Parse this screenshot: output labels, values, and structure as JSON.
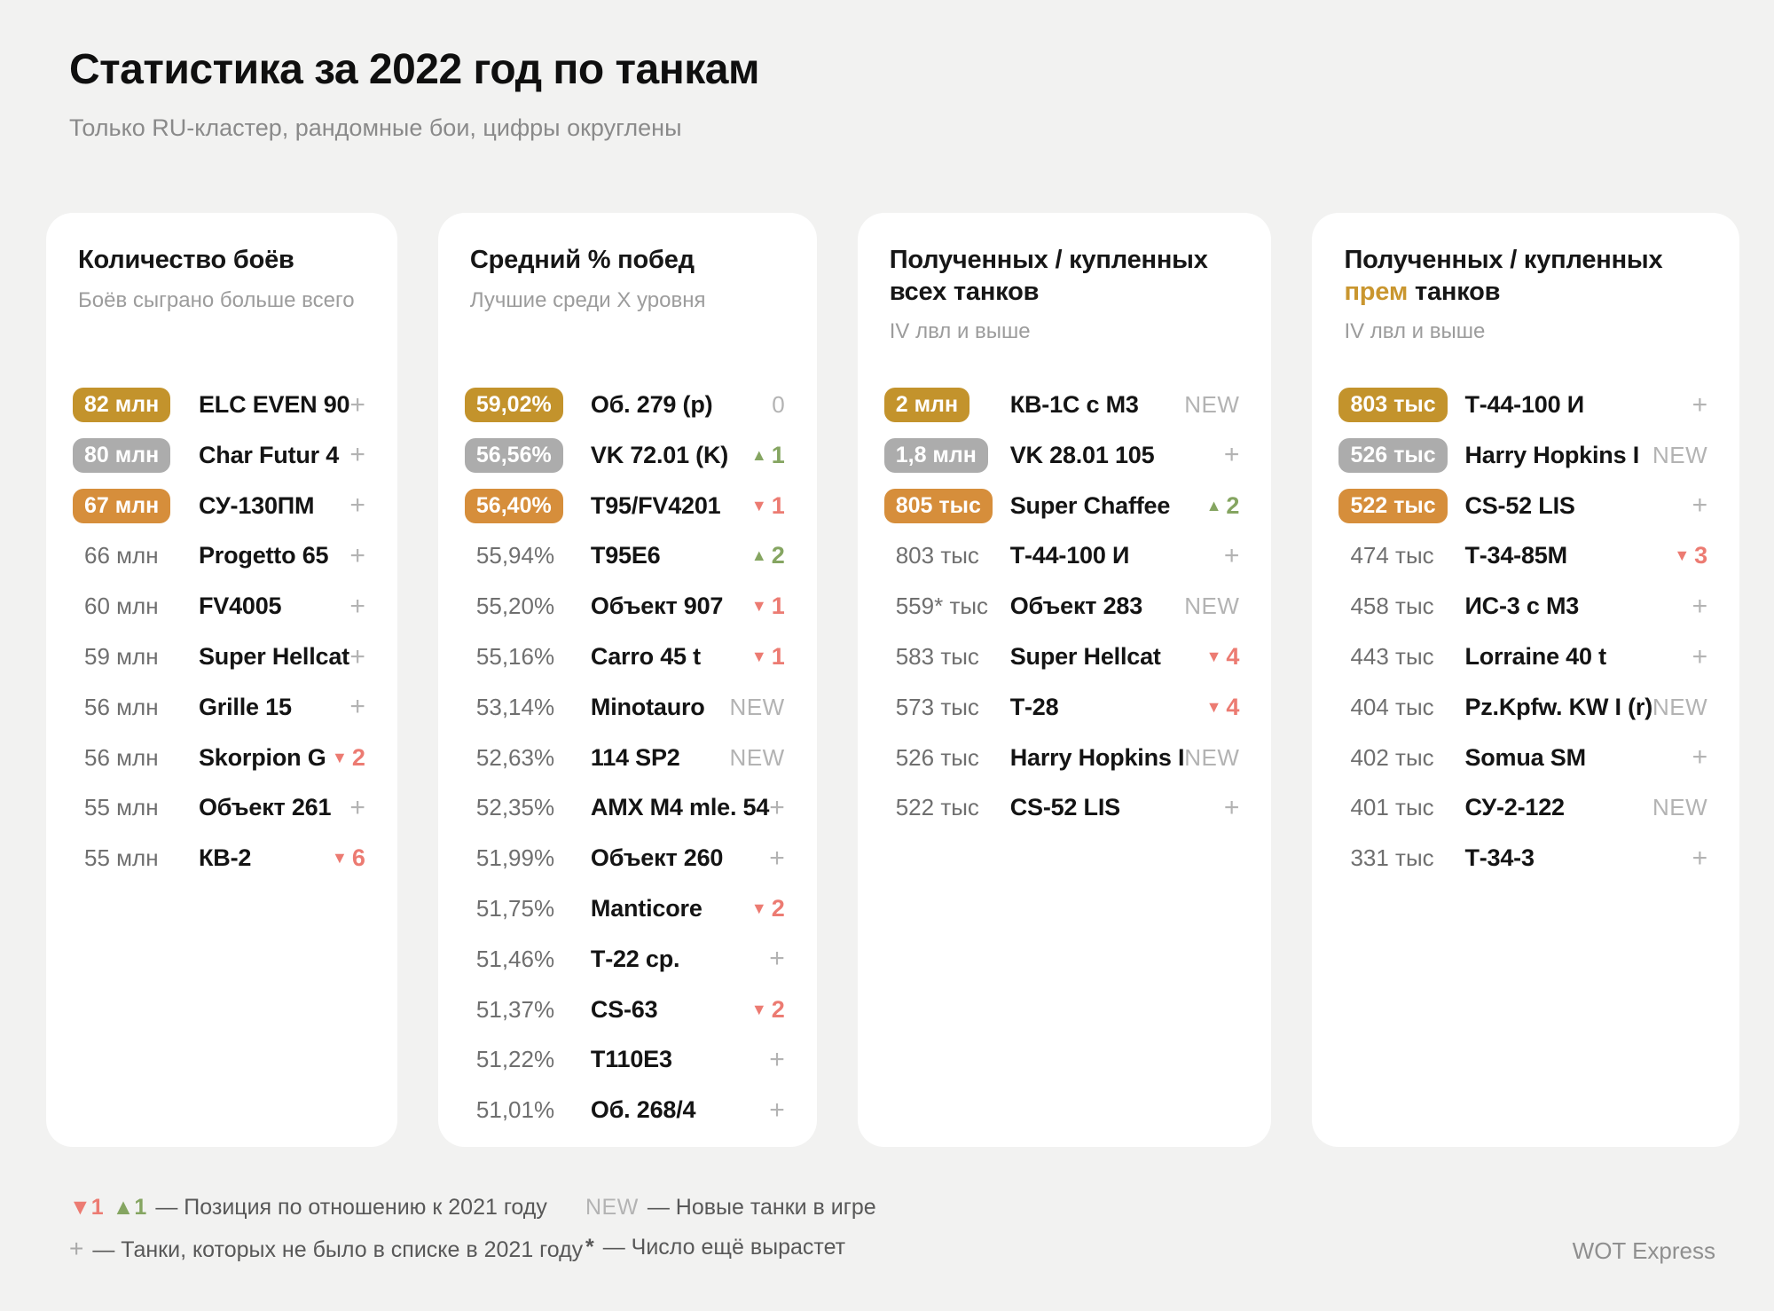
{
  "page": {
    "title": "Статистика за 2022 год по танкам",
    "subtitle": "Только RU-кластер, рандомные бои, цифры округлены",
    "credit": "WOT Express"
  },
  "colors": {
    "gold": "#C3932C",
    "silver": "#ACACAC",
    "bronze": "#D68E3B",
    "up_green": "#85A561",
    "down_red": "#EC7B72",
    "accent_gold": "#C9962F"
  },
  "chart_data": [
    {
      "type": "table",
      "title_line1": "Количество боёв",
      "title_accent": "",
      "title_line2": "",
      "subtitle": "Боёв сыграно больше всего",
      "rows": [
        {
          "value": "82 млн",
          "badge": "gold",
          "name": "ELC EVEN 90",
          "ind": {
            "type": "plus",
            "label": "+"
          }
        },
        {
          "value": "80 млн",
          "badge": "silver",
          "name": "Char Futur 4",
          "ind": {
            "type": "plus",
            "label": "+"
          }
        },
        {
          "value": "67 млн",
          "badge": "bronze",
          "name": "СУ-130ПМ",
          "ind": {
            "type": "plus",
            "label": "+"
          }
        },
        {
          "value": "66 млн",
          "badge": null,
          "name": "Progetto 65",
          "ind": {
            "type": "plus",
            "label": "+"
          }
        },
        {
          "value": "60 млн",
          "badge": null,
          "name": "FV4005",
          "ind": {
            "type": "plus",
            "label": "+"
          }
        },
        {
          "value": "59 млн",
          "badge": null,
          "name": "Super Hellcat",
          "ind": {
            "type": "plus",
            "label": "+"
          }
        },
        {
          "value": "56 млн",
          "badge": null,
          "name": "Grille 15",
          "ind": {
            "type": "plus",
            "label": "+"
          }
        },
        {
          "value": "56 млн",
          "badge": null,
          "name": "Skorpion G",
          "ind": {
            "type": "down",
            "label": "2"
          }
        },
        {
          "value": "55 млн",
          "badge": null,
          "name": "Объект 261",
          "ind": {
            "type": "plus",
            "label": "+"
          }
        },
        {
          "value": "55 млн",
          "badge": null,
          "name": "КВ-2",
          "ind": {
            "type": "down",
            "label": "6"
          }
        }
      ]
    },
    {
      "type": "table",
      "title_line1": "Средний % побед",
      "title_accent": "",
      "title_line2": "",
      "subtitle": "Лучшие среди X уровня",
      "rows": [
        {
          "value": "59,02%",
          "badge": "gold",
          "name": "Об. 279 (р)",
          "ind": {
            "type": "zero",
            "label": "0"
          }
        },
        {
          "value": "56,56%",
          "badge": "silver",
          "name": "VK 72.01 (K)",
          "ind": {
            "type": "up",
            "label": "1"
          }
        },
        {
          "value": "56,40%",
          "badge": "bronze",
          "name": "T95/FV4201",
          "ind": {
            "type": "down",
            "label": "1"
          }
        },
        {
          "value": "55,94%",
          "badge": null,
          "name": "T95E6",
          "ind": {
            "type": "up",
            "label": "2"
          }
        },
        {
          "value": "55,20%",
          "badge": null,
          "name": "Объект 907",
          "ind": {
            "type": "down",
            "label": "1"
          }
        },
        {
          "value": "55,16%",
          "badge": null,
          "name": "Carro 45 t",
          "ind": {
            "type": "down",
            "label": "1"
          }
        },
        {
          "value": "53,14%",
          "badge": null,
          "name": "Minotauro",
          "ind": {
            "type": "new",
            "label": "NEW"
          }
        },
        {
          "value": "52,63%",
          "badge": null,
          "name": "114 SP2",
          "ind": {
            "type": "new",
            "label": "NEW"
          }
        },
        {
          "value": "52,35%",
          "badge": null,
          "name": "AMX M4 mle. 54",
          "ind": {
            "type": "plus",
            "label": "+"
          }
        },
        {
          "value": "51,99%",
          "badge": null,
          "name": "Объект 260",
          "ind": {
            "type": "plus",
            "label": "+"
          }
        },
        {
          "value": "51,75%",
          "badge": null,
          "name": "Manticore",
          "ind": {
            "type": "down",
            "label": "2"
          }
        },
        {
          "value": "51,46%",
          "badge": null,
          "name": "Т-22 ср.",
          "ind": {
            "type": "plus",
            "label": "+"
          }
        },
        {
          "value": "51,37%",
          "badge": null,
          "name": "CS-63",
          "ind": {
            "type": "down",
            "label": "2"
          }
        },
        {
          "value": "51,22%",
          "badge": null,
          "name": "T110E3",
          "ind": {
            "type": "plus",
            "label": "+"
          }
        },
        {
          "value": "51,01%",
          "badge": null,
          "name": "Об. 268/4",
          "ind": {
            "type": "plus",
            "label": "+"
          }
        }
      ]
    },
    {
      "type": "table",
      "title_line1": "Полученных / купленных",
      "title_accent": "",
      "title_line2": "всех танков",
      "subtitle": "IV лвл и выше",
      "rows": [
        {
          "value": "2 млн",
          "badge": "gold",
          "name": "КВ-1С с М3",
          "ind": {
            "type": "new",
            "label": "NEW"
          }
        },
        {
          "value": "1,8 млн",
          "badge": "silver",
          "name": "VK 28.01 105",
          "ind": {
            "type": "plus",
            "label": "+"
          }
        },
        {
          "value": "805 тыс",
          "badge": "bronze",
          "name": "Super Chaffee",
          "ind": {
            "type": "up",
            "label": "2"
          }
        },
        {
          "value": "803 тыс",
          "badge": null,
          "name": "Т-44-100 И",
          "ind": {
            "type": "plus",
            "label": "+"
          }
        },
        {
          "value": "559* тыс",
          "badge": null,
          "name": "Объект 283",
          "ind": {
            "type": "new",
            "label": "NEW"
          }
        },
        {
          "value": "583 тыс",
          "badge": null,
          "name": "Super Hellcat",
          "ind": {
            "type": "down",
            "label": "4"
          }
        },
        {
          "value": "573 тыс",
          "badge": null,
          "name": "Т-28",
          "ind": {
            "type": "down",
            "label": "4"
          }
        },
        {
          "value": "526 тыс",
          "badge": null,
          "name": "Harry Hopkins I",
          "ind": {
            "type": "new",
            "label": "NEW"
          }
        },
        {
          "value": "522 тыс",
          "badge": null,
          "name": "CS-52 LIS",
          "ind": {
            "type": "plus",
            "label": "+"
          }
        }
      ]
    },
    {
      "type": "table",
      "title_line1": "Полученных / купленных",
      "title_accent": "прем",
      "title_line2": "танков",
      "subtitle": "IV лвл и выше",
      "rows": [
        {
          "value": "803 тыс",
          "badge": "gold",
          "name": "Т-44-100 И",
          "ind": {
            "type": "plus",
            "label": "+"
          }
        },
        {
          "value": "526 тыс",
          "badge": "silver",
          "name": "Harry Hopkins I",
          "ind": {
            "type": "new",
            "label": "NEW"
          }
        },
        {
          "value": "522 тыс",
          "badge": "bronze",
          "name": "CS-52 LIS",
          "ind": {
            "type": "plus",
            "label": "+"
          }
        },
        {
          "value": "474 тыс",
          "badge": null,
          "name": "Т-34-85М",
          "ind": {
            "type": "down",
            "label": "3"
          }
        },
        {
          "value": "458 тыс",
          "badge": null,
          "name": "ИС-3 с М3",
          "ind": {
            "type": "plus",
            "label": "+"
          }
        },
        {
          "value": "443 тыс",
          "badge": null,
          "name": "Lorraine 40 t",
          "ind": {
            "type": "plus",
            "label": "+"
          }
        },
        {
          "value": "404 тыс",
          "badge": null,
          "name": "Pz.Kpfw. KW I (r)",
          "ind": {
            "type": "new",
            "label": "NEW"
          }
        },
        {
          "value": "402 тыс",
          "badge": null,
          "name": "Somua SM",
          "ind": {
            "type": "plus",
            "label": "+"
          }
        },
        {
          "value": "401 тыс",
          "badge": null,
          "name": "СУ-2-122",
          "ind": {
            "type": "new",
            "label": "NEW"
          }
        },
        {
          "value": "331 тыс",
          "badge": null,
          "name": "Т-34-3",
          "ind": {
            "type": "plus",
            "label": "+"
          }
        }
      ]
    }
  ],
  "legend": {
    "columns": [
      [
        {
          "parts": [
            {
              "cls": "down",
              "icon_name": "rank-down-icon",
              "text": "▼1"
            },
            {
              "cls": "up",
              "icon_name": "rank-up-icon",
              "text": "▲1"
            }
          ],
          "text": "— Позиция по отношению к 2021 году"
        },
        {
          "parts": [
            {
              "cls": "plus",
              "icon_name": "plus-icon",
              "text": "+"
            }
          ],
          "text": "— Танки, которых не было в списке в 2021 году"
        }
      ],
      [
        {
          "parts": [
            {
              "cls": "new",
              "icon_name": "new-badge",
              "text": "NEW"
            }
          ],
          "text": "— Новые танки в игре"
        },
        {
          "parts": [
            {
              "cls": "star",
              "icon_name": "asterisk-icon",
              "text": "*"
            }
          ],
          "text": "— Число ещё вырастет"
        }
      ]
    ]
  }
}
